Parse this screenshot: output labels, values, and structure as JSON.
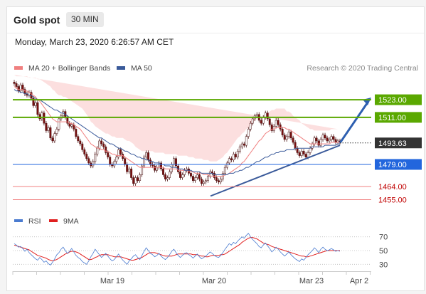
{
  "header": {
    "title": "Gold spot",
    "timeframe": "30 MIN"
  },
  "datetime": "Monday, March 23, 2020 6:26:57 AM CET",
  "legend": {
    "ma20": "MA 20 + Bollinger Bands",
    "ma50": "MA 50",
    "credit": "Research © 2020 Trading Central"
  },
  "rsi_legend": {
    "rsi": "RSI",
    "ma9": "9MA"
  },
  "colors": {
    "ma20": "#f08080",
    "ma50": "#3a5a9a",
    "resistance": "#5aa800",
    "pivot": "#2266dd",
    "support": "#f08080",
    "current": "#333333",
    "candle_up": "#ffffff",
    "candle_down": "#7a1010",
    "band_fill": "#fbd9d9",
    "rsi": "#4a7bd0",
    "rsi_ma": "#e02020"
  },
  "chart_data": [
    {
      "type": "candlestick",
      "title": "Gold spot",
      "timeframe": "30 MIN",
      "ylim": [
        1448,
        1540
      ],
      "x_ticks": [
        "Mar 19",
        "Mar 20",
        "Mar 23",
        "Apr 2"
      ],
      "levels": [
        {
          "value": 1523.0,
          "label": "1523.00",
          "kind": "resistance"
        },
        {
          "value": 1511.0,
          "label": "1511.00",
          "kind": "resistance"
        },
        {
          "value": 1493.63,
          "label": "1493.63",
          "kind": "current"
        },
        {
          "value": 1479.0,
          "label": "1479.00",
          "kind": "pivot"
        },
        {
          "value": 1464.0,
          "label": "1464.00",
          "kind": "support"
        },
        {
          "value": 1455.0,
          "label": "1455.00",
          "kind": "support"
        }
      ],
      "close": [
        1534,
        1532,
        1529,
        1533,
        1530,
        1527,
        1526,
        1528,
        1524,
        1519,
        1521,
        1513,
        1510,
        1514,
        1507,
        1502,
        1504,
        1497,
        1495,
        1500,
        1503,
        1510,
        1512,
        1515,
        1511,
        1507,
        1505,
        1506,
        1503,
        1498,
        1495,
        1493,
        1489,
        1486,
        1483,
        1480,
        1478,
        1481,
        1486,
        1490,
        1495,
        1493,
        1491,
        1487,
        1484,
        1479,
        1478,
        1481,
        1484,
        1489,
        1486,
        1483,
        1479,
        1474,
        1476,
        1470,
        1466,
        1470,
        1468,
        1472,
        1478,
        1484,
        1487,
        1482,
        1479,
        1478,
        1475,
        1477,
        1480,
        1476,
        1472,
        1469,
        1470,
        1474,
        1479,
        1483,
        1478,
        1474,
        1470,
        1472,
        1475,
        1476,
        1473,
        1471,
        1468,
        1470,
        1472,
        1469,
        1466,
        1467,
        1468,
        1471,
        1474,
        1473,
        1470,
        1468,
        1467,
        1469,
        1473,
        1477,
        1480,
        1483,
        1482,
        1486,
        1484,
        1488,
        1491,
        1493,
        1492,
        1498,
        1503,
        1507,
        1510,
        1512,
        1513,
        1509,
        1507,
        1511,
        1514,
        1510,
        1506,
        1502,
        1505,
        1509,
        1506,
        1503,
        1499,
        1496,
        1498,
        1501,
        1497,
        1494,
        1490,
        1487,
        1485,
        1488,
        1486,
        1484,
        1487,
        1490,
        1493,
        1497,
        1495,
        1492,
        1496,
        1499,
        1497,
        1495,
        1496,
        1498,
        1496,
        1494,
        1495,
        1494
      ],
      "ma20": [
        1532,
        1531,
        1530,
        1530,
        1530,
        1529,
        1529,
        1528,
        1527,
        1526,
        1525,
        1523,
        1522,
        1520,
        1518,
        1516,
        1514,
        1512,
        1510,
        1509,
        1508,
        1508,
        1508,
        1508,
        1508,
        1508,
        1507,
        1507,
        1506,
        1505,
        1504,
        1503,
        1501,
        1499,
        1497,
        1495,
        1493,
        1492,
        1491,
        1490,
        1490,
        1489,
        1489,
        1488,
        1488,
        1487,
        1486,
        1486,
        1485,
        1485,
        1485,
        1485,
        1484,
        1483,
        1482,
        1481,
        1480,
        1479,
        1478,
        1477,
        1477,
        1477,
        1477,
        1477,
        1477,
        1477,
        1477,
        1477,
        1477,
        1477,
        1477,
        1476,
        1476,
        1476,
        1476,
        1476,
        1476,
        1475,
        1475,
        1475,
        1475,
        1475,
        1474,
        1474,
        1474,
        1473,
        1473,
        1473,
        1473,
        1472,
        1472,
        1472,
        1471,
        1471,
        1471,
        1471,
        1471,
        1471,
        1471,
        1472,
        1472,
        1473,
        1474,
        1475,
        1476,
        1477,
        1478,
        1480,
        1481,
        1483,
        1485,
        1487,
        1489,
        1491,
        1493,
        1495,
        1496,
        1498,
        1500,
        1501,
        1502,
        1503,
        1503,
        1504,
        1504,
        1504,
        1504,
        1504,
        1503,
        1503,
        1502,
        1501,
        1500,
        1499,
        1498,
        1497,
        1496,
        1495,
        1494,
        1493,
        1493,
        1493,
        1493,
        1493,
        1493,
        1493,
        1493,
        1493,
        1493,
        1494,
        1494,
        1494,
        1494,
        1494
      ],
      "ma50": [
        1530,
        1529,
        1529,
        1528,
        1528,
        1527,
        1527,
        1526,
        1526,
        1525,
        1524,
        1523,
        1523,
        1522,
        1521,
        1520,
        1519,
        1518,
        1517,
        1516,
        1516,
        1515,
        1514,
        1514,
        1513,
        1512,
        1511,
        1510,
        1509,
        1508,
        1507,
        1506,
        1505,
        1504,
        1503,
        1502,
        1501,
        1500,
        1499,
        1498,
        1497,
        1497,
        1496,
        1495,
        1494,
        1493,
        1493,
        1492,
        1491,
        1490,
        1490,
        1489,
        1488,
        1488,
        1487,
        1486,
        1486,
        1485,
        1484,
        1484,
        1483,
        1483,
        1482,
        1482,
        1481,
        1481,
        1480,
        1480,
        1480,
        1479,
        1479,
        1478,
        1478,
        1478,
        1477,
        1477,
        1477,
        1476,
        1476,
        1476,
        1475,
        1475,
        1475,
        1475,
        1474,
        1474,
        1474,
        1474,
        1473,
        1473,
        1473,
        1473,
        1473,
        1473,
        1472,
        1472,
        1472,
        1472,
        1472,
        1472,
        1472,
        1473,
        1473,
        1473,
        1474,
        1474,
        1475,
        1475,
        1476,
        1477,
        1477,
        1478,
        1479,
        1480,
        1481,
        1481,
        1482,
        1483,
        1484,
        1484,
        1485,
        1486,
        1486,
        1487,
        1487,
        1488,
        1488,
        1488,
        1489,
        1489,
        1489,
        1489,
        1490,
        1490,
        1490,
        1490,
        1490,
        1490,
        1490,
        1490,
        1491,
        1491,
        1491,
        1491,
        1491,
        1491,
        1492,
        1492,
        1492,
        1492,
        1492,
        1492,
        1493,
        1493
      ],
      "band_width": [
        8,
        8,
        9,
        9,
        9,
        10,
        10,
        10,
        11,
        12,
        13,
        14,
        15,
        16,
        17,
        18,
        19,
        20,
        20,
        20,
        19,
        18,
        18,
        17,
        17,
        16,
        16,
        15,
        15,
        15,
        15,
        15,
        16,
        16,
        16,
        16,
        15,
        15,
        14,
        14,
        13,
        13,
        12,
        12,
        12,
        12,
        12,
        12,
        12,
        12,
        12,
        12,
        12,
        12,
        13,
        13,
        13,
        12,
        12,
        12,
        11,
        11,
        11,
        11,
        11,
        11,
        10,
        10,
        10,
        10,
        10,
        10,
        10,
        10,
        10,
        10,
        10,
        10,
        10,
        10,
        10,
        10,
        10,
        10,
        10,
        10,
        10,
        10,
        10,
        10,
        10,
        10,
        10,
        10,
        10,
        10,
        11,
        12,
        13,
        14,
        15,
        16,
        17,
        18,
        19,
        20,
        20,
        20,
        20,
        20,
        19,
        19,
        18,
        18,
        17,
        16,
        15,
        14,
        13,
        13,
        13,
        13,
        13,
        13,
        13,
        13,
        13,
        13,
        12,
        12,
        12,
        11,
        11,
        11,
        11,
        10,
        10,
        10,
        10,
        10,
        10,
        9,
        9,
        9,
        9,
        9,
        9,
        9,
        9,
        9,
        9,
        9,
        9
      ]
    },
    {
      "type": "line",
      "title": "RSI",
      "ylim": [
        20,
        80
      ],
      "y_ticks": [
        70,
        50,
        30
      ],
      "series": [
        {
          "name": "RSI",
          "values": [
            60,
            58,
            55,
            56,
            53,
            49,
            52,
            47,
            44,
            41,
            38,
            36,
            40,
            37,
            33,
            35,
            31,
            29,
            33,
            38,
            44,
            47,
            52,
            55,
            50,
            46,
            49,
            53,
            48,
            43,
            40,
            38,
            34,
            32,
            30,
            35,
            41,
            46,
            52,
            48,
            44,
            40,
            43,
            46,
            42,
            38,
            35,
            37,
            41,
            45,
            40,
            36,
            33,
            30,
            35,
            38,
            42,
            44,
            40,
            37,
            43,
            49,
            54,
            50,
            46,
            44,
            41,
            43,
            46,
            42,
            39,
            37,
            40,
            44,
            49,
            52,
            47,
            43,
            40,
            43,
            46,
            47,
            44,
            42,
            39,
            42,
            45,
            41,
            38,
            40,
            42,
            45,
            48,
            46,
            43,
            41,
            40,
            43,
            47,
            52,
            56,
            60,
            58,
            62,
            60,
            64,
            67,
            70,
            68,
            72,
            75,
            70,
            66,
            63,
            60,
            56,
            54,
            58,
            61,
            57,
            53,
            48,
            51,
            55,
            52,
            48,
            45,
            42,
            45,
            48,
            44,
            41,
            38,
            36,
            34,
            38,
            36,
            40,
            44,
            47,
            50,
            54,
            51,
            47,
            52,
            55,
            52,
            50,
            51,
            53,
            51,
            49,
            50,
            49
          ]
        },
        {
          "name": "9MA",
          "values": [
            58,
            57,
            56,
            55,
            54,
            53,
            52,
            51,
            49,
            47,
            45,
            43,
            42,
            41,
            40,
            39,
            37,
            36,
            35,
            36,
            37,
            39,
            41,
            43,
            45,
            46,
            48,
            49,
            49,
            48,
            47,
            45,
            43,
            41,
            39,
            37,
            37,
            38,
            40,
            41,
            43,
            44,
            44,
            44,
            44,
            43,
            42,
            41,
            41,
            41,
            41,
            40,
            39,
            38,
            37,
            36,
            36,
            37,
            38,
            39,
            40,
            42,
            44,
            46,
            47,
            47,
            47,
            46,
            45,
            44,
            43,
            42,
            42,
            42,
            42,
            43,
            44,
            45,
            45,
            45,
            45,
            45,
            45,
            45,
            44,
            44,
            44,
            43,
            42,
            42,
            41,
            41,
            42,
            43,
            43,
            43,
            43,
            44,
            44,
            45,
            47,
            49,
            51,
            53,
            55,
            57,
            59,
            62,
            64,
            66,
            68,
            69,
            69,
            68,
            67,
            65,
            63,
            61,
            60,
            59,
            58,
            56,
            55,
            54,
            53,
            52,
            51,
            50,
            49,
            48,
            47,
            46,
            45,
            44,
            43,
            42,
            42,
            41,
            41,
            42,
            43,
            44,
            45,
            46,
            47,
            48,
            49,
            50,
            50,
            50,
            50,
            50,
            50,
            50
          ]
        }
      ]
    }
  ]
}
